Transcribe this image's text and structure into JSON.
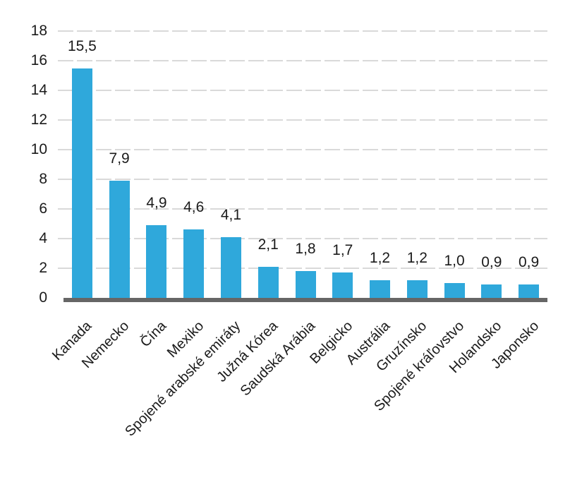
{
  "chart_data": {
    "type": "bar",
    "title": "",
    "xlabel": "",
    "ylabel": "",
    "categories": [
      "Kanada",
      "Nemecko",
      "Čína",
      "Mexiko",
      "Spojené arabské emiráty",
      "Južná Kórea",
      "Saudská Arábia",
      "Belgicko",
      "Austrália",
      "Gruzínsko",
      "Spojené kráľovstvo",
      "Holandsko",
      "Japonsko"
    ],
    "values": [
      15.5,
      7.9,
      4.9,
      4.6,
      4.1,
      2.1,
      1.8,
      1.7,
      1.2,
      1.2,
      1.0,
      0.9,
      0.9
    ],
    "value_labels": [
      "15,5",
      "7,9",
      "4,9",
      "4,6",
      "4,1",
      "2,1",
      "1,8",
      "1,7",
      "1,2",
      "1,2",
      "1,0",
      "0,9",
      "0,9"
    ],
    "ylim": [
      0,
      18
    ],
    "ytick_step": 2,
    "ytick_labels": [
      "0",
      "2",
      "4",
      "6",
      "8",
      "10",
      "12",
      "14",
      "16",
      "18"
    ],
    "grid": true,
    "grid_style": "dashed",
    "legend": false,
    "colors": {
      "bar": "#2fa8db",
      "axis_line": "#666666",
      "gridline": "#d9d9d9",
      "text": "#1a1a1a",
      "background": "#ffffff"
    }
  }
}
